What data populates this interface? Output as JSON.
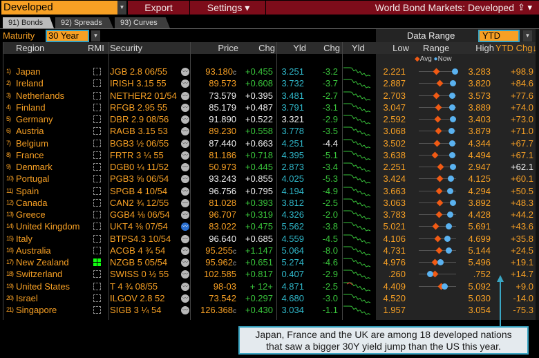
{
  "toolbar": {
    "selector": "Developed",
    "export": "Export",
    "settings": "Settings ▾",
    "title": "World Bond Markets: Developed"
  },
  "tabs": [
    {
      "label": "91) Bonds"
    },
    {
      "label": "92) Spreads"
    },
    {
      "label": "93) Curves"
    }
  ],
  "filters": {
    "maturity_label": "Maturity",
    "maturity": "30 Year",
    "data_range_label": "Data Range",
    "data_range": "YTD"
  },
  "headers": {
    "region": "Region",
    "rmi": "RMI",
    "security": "Security",
    "price": "Price",
    "chg": "Chg",
    "yld": "Yld",
    "ychg": "Chg",
    "spark": "Yld",
    "low": "Low",
    "range": "Range",
    "high": "High",
    "ytd": "YTD Chg↓"
  },
  "legend": {
    "avg": "Avg",
    "now": "Now"
  },
  "colors": {
    "orange": "#f7a024",
    "green": "#39c43b",
    "cyan": "#2fb7c9",
    "avg": "#f05a14",
    "now": "#5ab2f0"
  },
  "rows": [
    {
      "n": "1)",
      "region": "Japan",
      "rmi": false,
      "security": "JGB 2.8 06/55",
      "price": "93.180",
      "pc": "c",
      "price_color": "or",
      "chg": "+0.455",
      "chg_color": "gr",
      "yld": "3.251",
      "yld_color": "cy",
      "ychg": "-3.2",
      "ychg_color": "gr",
      "low": "2.221",
      "high": "3.283",
      "ytd": "+98.9",
      "ytd_color": "or",
      "avg": 0.46,
      "now": 0.97
    },
    {
      "n": "2)",
      "region": "Ireland",
      "rmi": false,
      "security": "IRISH 3.15 55",
      "price": "89.573",
      "pc": "",
      "price_color": "or",
      "chg": "+0.608",
      "chg_color": "gr",
      "yld": "3.732",
      "yld_color": "cy",
      "ychg": "-3.7",
      "ychg_color": "gr",
      "low": "2.887",
      "high": "3.820",
      "ytd": "+84.6",
      "ytd_color": "or",
      "avg": 0.56,
      "now": 0.9
    },
    {
      "n": "3)",
      "region": "Netherlands",
      "rmi": false,
      "security": "NETHER2 01/54",
      "price": "73.579",
      "pc": "",
      "price_color": "wh",
      "chg": "+0.395",
      "chg_color": "wh",
      "yld": "3.481",
      "yld_color": "cy",
      "ychg": "-2.7",
      "ychg_color": "gr",
      "low": "2.703",
      "high": "3.573",
      "ytd": "+77.6",
      "ytd_color": "or",
      "avg": 0.47,
      "now": 0.89
    },
    {
      "n": "4)",
      "region": "Finland",
      "rmi": false,
      "security": "RFGB 2.95 55",
      "price": "85.179",
      "pc": "",
      "price_color": "wh",
      "chg": "+0.487",
      "chg_color": "wh",
      "yld": "3.791",
      "yld_color": "cy",
      "ychg": "-3.1",
      "ychg_color": "gr",
      "low": "3.047",
      "high": "3.889",
      "ytd": "+74.0",
      "ytd_color": "or",
      "avg": 0.51,
      "now": 0.89
    },
    {
      "n": "5)",
      "region": "Germany",
      "rmi": false,
      "security": "DBR 2.9 08/56",
      "price": "91.890",
      "pc": "",
      "price_color": "wh",
      "chg": "+0.522",
      "chg_color": "wh",
      "yld": "3.321",
      "yld_color": "wh",
      "ychg": "-2.9",
      "ychg_color": "gr",
      "low": "2.592",
      "high": "3.403",
      "ytd": "+73.0",
      "ytd_color": "or",
      "avg": 0.5,
      "now": 0.9
    },
    {
      "n": "6)",
      "region": "Austria",
      "rmi": false,
      "security": "RAGB 3.15 53",
      "price": "89.230",
      "pc": "",
      "price_color": "or",
      "chg": "+0.558",
      "chg_color": "gr",
      "yld": "3.778",
      "yld_color": "cy",
      "ychg": "-3.5",
      "ychg_color": "gr",
      "low": "3.068",
      "high": "3.879",
      "ytd": "+71.0",
      "ytd_color": "or",
      "avg": 0.51,
      "now": 0.87
    },
    {
      "n": "7)",
      "region": "Belgium",
      "rmi": false,
      "security": "BGB3 ½ 06/55",
      "price": "87.440",
      "pc": "",
      "price_color": "wh",
      "chg": "+0.663",
      "chg_color": "wh",
      "yld": "4.251",
      "yld_color": "cy",
      "ychg": "-4.4",
      "ychg_color": "wh",
      "low": "3.502",
      "high": "4.344",
      "ytd": "+67.7",
      "ytd_color": "or",
      "avg": 0.49,
      "now": 0.89
    },
    {
      "n": "8)",
      "region": "France",
      "rmi": false,
      "security": "FRTR 3 ¼ 55",
      "price": "81.186",
      "pc": "",
      "price_color": "or",
      "chg": "+0.718",
      "chg_color": "gr",
      "yld": "4.395",
      "yld_color": "cy",
      "ychg": "-5.1",
      "ychg_color": "gr",
      "low": "3.638",
      "high": "4.494",
      "ytd": "+67.1",
      "ytd_color": "or",
      "avg": 0.42,
      "now": 0.89
    },
    {
      "n": "9)",
      "region": "Denmark",
      "rmi": false,
      "security": "DGB0 ¼ 11/52",
      "price": "50.973",
      "pc": "",
      "price_color": "or",
      "chg": "+0.445",
      "chg_color": "gr",
      "yld": "2.873",
      "yld_color": "cy",
      "ychg": "-3.4",
      "ychg_color": "gr",
      "low": "2.251",
      "high": "2.947",
      "ytd": "+62.1",
      "ytd_color": "wh",
      "avg": 0.58,
      "now": 0.9
    },
    {
      "n": "10)",
      "region": "Portugal",
      "rmi": false,
      "security": "PGB3 ⅝ 06/54",
      "price": "93.243",
      "pc": "",
      "price_color": "wh",
      "chg": "+0.855",
      "chg_color": "wh",
      "yld": "4.025",
      "yld_color": "cy",
      "ychg": "-5.3",
      "ychg_color": "gr",
      "low": "3.424",
      "high": "4.125",
      "ytd": "+60.1",
      "ytd_color": "or",
      "avg": 0.56,
      "now": 0.85
    },
    {
      "n": "11)",
      "region": "Spain",
      "rmi": false,
      "security": "SPGB 4 10/54",
      "price": "96.756",
      "pc": "",
      "price_color": "wh",
      "chg": "+0.795",
      "chg_color": "wh",
      "yld": "4.194",
      "yld_color": "cy",
      "ychg": "-4.9",
      "ychg_color": "gr",
      "low": "3.663",
      "high": "4.294",
      "ytd": "+50.5",
      "ytd_color": "or",
      "avg": 0.53,
      "now": 0.84
    },
    {
      "n": "12)",
      "region": "Canada",
      "rmi": false,
      "security": "CAN2 ¾ 12/55",
      "price": "81.028",
      "pc": "",
      "price_color": "or",
      "chg": "+0.393",
      "chg_color": "gr",
      "yld": "3.812",
      "yld_color": "cy",
      "ychg": "-2.5",
      "ychg_color": "gr",
      "low": "3.063",
      "high": "3.892",
      "ytd": "+48.3",
      "ytd_color": "or",
      "avg": 0.55,
      "now": 0.9
    },
    {
      "n": "13)",
      "region": "Greece",
      "rmi": false,
      "security": "GGB4 ⅛ 06/54",
      "price": "96.707",
      "pc": "",
      "price_color": "or",
      "chg": "+0.319",
      "chg_color": "gr",
      "yld": "4.326",
      "yld_color": "cy",
      "ychg": "-2.0",
      "ychg_color": "gr",
      "low": "3.783",
      "high": "4.428",
      "ytd": "+44.2",
      "ytd_color": "or",
      "avg": 0.54,
      "now": 0.84
    },
    {
      "n": "14)",
      "region": "United Kingdom",
      "rmi": false,
      "security": "UKT4 ⅜ 07/54",
      "price": "83.022",
      "pc": "",
      "price_color": "or",
      "chg": "+0.475",
      "chg_color": "gr",
      "yld": "5.562",
      "yld_color": "cy",
      "ychg": "-3.8",
      "ychg_color": "gr",
      "low": "5.021",
      "high": "5.691",
      "ytd": "+43.6",
      "ytd_color": "or",
      "avg": 0.44,
      "now": 0.8,
      "blue_icon": true
    },
    {
      "n": "15)",
      "region": "Italy",
      "rmi": false,
      "security": "BTPS4.3 10/54",
      "price": "96.640",
      "pc": "",
      "price_color": "wh",
      "chg": "+0.685",
      "chg_color": "wh",
      "yld": "4.559",
      "yld_color": "cy",
      "ychg": "-4.5",
      "ychg_color": "gr",
      "low": "4.106",
      "high": "4.699",
      "ytd": "+35.8",
      "ytd_color": "or",
      "avg": 0.5,
      "now": 0.76
    },
    {
      "n": "16)",
      "region": "Australia",
      "rmi": false,
      "security": "ACGB 4 ¾ 54",
      "price": "95.255",
      "pc": "c",
      "price_color": "or",
      "chg": "+1.147",
      "chg_color": "gr",
      "yld": "5.064",
      "yld_color": "cy",
      "ychg": "-8.0",
      "ychg_color": "gr",
      "low": "4.731",
      "high": "5.144",
      "ytd": "+24.5",
      "ytd_color": "or",
      "avg": 0.54,
      "now": 0.8
    },
    {
      "n": "17)",
      "region": "New Zealand",
      "rmi": true,
      "security": "NZGB 5 05/54",
      "price": "95.962",
      "pc": "c",
      "price_color": "or",
      "chg": "+0.651",
      "chg_color": "gr",
      "yld": "5.274",
      "yld_color": "cy",
      "ychg": "-4.6",
      "ychg_color": "gr",
      "low": "4.976",
      "high": "5.496",
      "ytd": "+19.1",
      "ytd_color": "or",
      "avg": 0.42,
      "now": 0.58
    },
    {
      "n": "18)",
      "region": "Switzerland",
      "rmi": false,
      "security": "SWISS 0 ½ 55",
      "price": "102.585",
      "pc": "",
      "price_color": "or",
      "chg": "+0.817",
      "chg_color": "gr",
      "yld": "0.407",
      "yld_color": "cy",
      "ychg": "-2.9",
      "ychg_color": "gr",
      "low": ".260",
      "high": ".752",
      "ytd": "+14.7",
      "ytd_color": "or",
      "avg": 0.42,
      "now": 0.3
    },
    {
      "n": "19)",
      "region": "United States",
      "rmi": false,
      "security": "T 4 ¾ 08/55",
      "price": "98-03",
      "pc": "",
      "price_color": "or",
      "chg": "+ 12+",
      "chg_color": "gr",
      "yld": "4.871",
      "yld_color": "cy",
      "ychg": "-2.5",
      "ychg_color": "gr",
      "low": "4.409",
      "high": "5.092",
      "ytd": "+9.0",
      "ytd_color": "or",
      "avg": 0.59,
      "now": 0.68
    },
    {
      "n": "20)",
      "region": "Israel",
      "rmi": false,
      "security": "ILGOV 2.8 52",
      "price": "73.542",
      "pc": "",
      "price_color": "or",
      "chg": "+0.297",
      "chg_color": "gr",
      "yld": "4.680",
      "yld_color": "cy",
      "ychg": "-3.0",
      "ychg_color": "gr",
      "low": "4.520",
      "high": "5.030",
      "ytd": "-14.0",
      "ytd_color": "or",
      "avg": null,
      "now": null
    },
    {
      "n": "21)",
      "region": "Singapore",
      "rmi": false,
      "security": "SIGB 3 ¼ 54",
      "price": "126.368",
      "pc": "c",
      "price_color": "or",
      "chg": "+0.430",
      "chg_color": "gr",
      "yld": "3.034",
      "yld_color": "cy",
      "ychg": "-1.1",
      "ychg_color": "gr",
      "low": "1.957",
      "high": "3.054",
      "ytd": "-75.3",
      "ytd_color": "or",
      "avg": null,
      "now": null
    }
  ],
  "callout": {
    "line1": "Japan, France and the UK are among 18 developed nations",
    "line2": "that saw a bigger 30Y yield jump than the US this year."
  }
}
